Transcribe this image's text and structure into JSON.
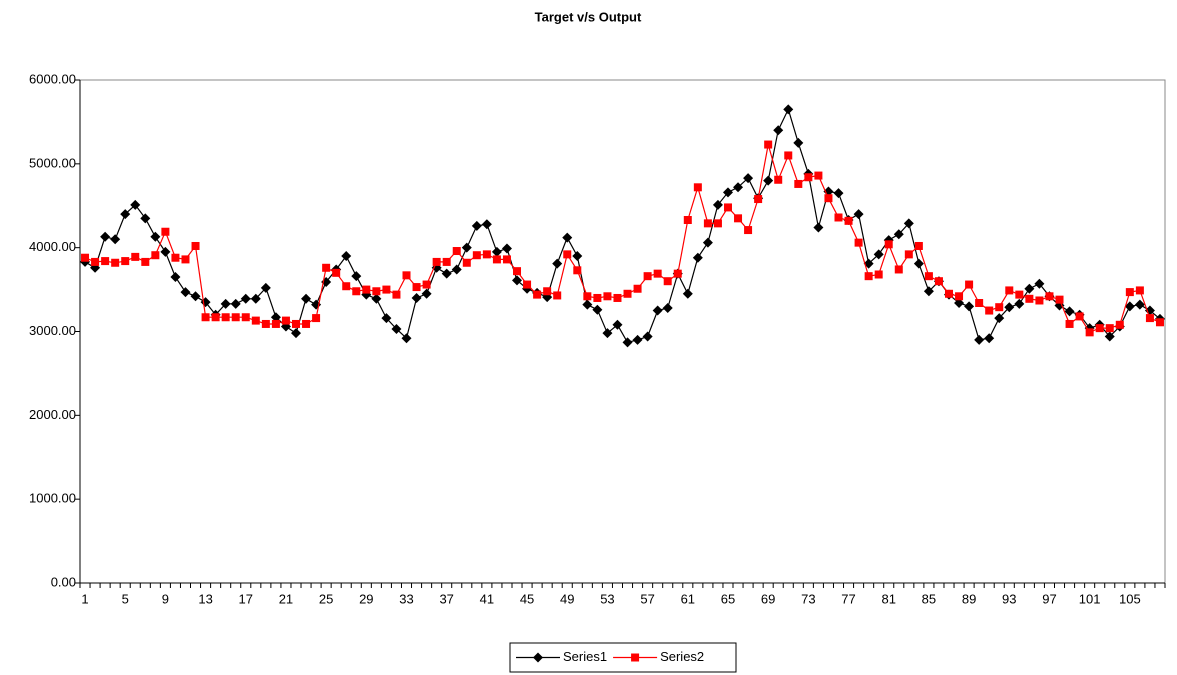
{
  "chart_data": {
    "type": "line",
    "title": "Target v/s  Output",
    "categories": [
      1,
      null,
      null,
      null,
      5,
      null,
      null,
      null,
      9,
      null,
      null,
      null,
      13,
      null,
      null,
      null,
      17,
      null,
      null,
      null,
      21,
      null,
      null,
      null,
      25,
      null,
      null,
      null,
      29,
      null,
      null,
      null,
      33,
      null,
      null,
      null,
      37,
      null,
      null,
      null,
      41,
      null,
      null,
      null,
      45,
      null,
      null,
      null,
      49,
      null,
      null,
      null,
      53,
      null,
      null,
      null,
      57,
      null,
      null,
      null,
      61,
      null,
      null,
      null,
      65,
      null,
      null,
      null,
      69,
      null,
      null,
      null,
      73,
      null,
      null,
      null,
      77,
      null,
      null,
      null,
      81,
      null,
      null,
      null,
      85,
      null,
      null,
      null,
      89,
      null,
      null,
      null,
      93,
      null,
      null,
      null,
      97,
      null,
      null,
      null,
      101,
      null,
      null,
      null,
      105,
      null,
      null,
      null
    ],
    "series": [
      {
        "name": "Series1",
        "color": "#000000",
        "marker": "diamond",
        "values": [
          3830,
          3760,
          4130,
          4100,
          4400,
          4510,
          4350,
          4130,
          3950,
          3650,
          3470,
          3420,
          3350,
          3200,
          3330,
          3330,
          3390,
          3390,
          3520,
          3170,
          3060,
          2980,
          3390,
          3320,
          3590,
          3740,
          3900,
          3660,
          3440,
          3390,
          3160,
          3030,
          2920,
          3400,
          3450,
          3760,
          3690,
          3740,
          4000,
          4260,
          4280,
          3950,
          3990,
          3610,
          3510,
          3460,
          3410,
          3810,
          4120,
          3900,
          3320,
          3260,
          2980,
          3080,
          2870,
          2900,
          2940,
          3250,
          3280,
          3690,
          3450,
          3880,
          4060,
          4510,
          4660,
          4720,
          4830,
          4590,
          4800,
          5400,
          5650,
          5250,
          4880,
          4240,
          4670,
          4650,
          4330,
          4400,
          3810,
          3920,
          4090,
          4160,
          4290,
          3810,
          3480,
          3600,
          3440,
          3340,
          3300,
          2900,
          2920,
          3160,
          3290,
          3330,
          3510,
          3570,
          3420,
          3310,
          3240,
          3200,
          3040,
          3080,
          2940,
          3060,
          3300,
          3320,
          3250,
          3150
        ]
      },
      {
        "name": "Series2",
        "color": "#ff0000",
        "marker": "square",
        "values": [
          3880,
          3830,
          3840,
          3820,
          3840,
          3890,
          3830,
          3910,
          4190,
          3880,
          3860,
          4020,
          3170,
          3170,
          3170,
          3170,
          3170,
          3130,
          3090,
          3090,
          3130,
          3090,
          3090,
          3160,
          3760,
          3700,
          3540,
          3480,
          3500,
          3480,
          3500,
          3440,
          3670,
          3530,
          3560,
          3830,
          3830,
          3960,
          3820,
          3910,
          3920,
          3860,
          3860,
          3720,
          3560,
          3440,
          3480,
          3430,
          3920,
          3730,
          3420,
          3400,
          3420,
          3400,
          3450,
          3510,
          3660,
          3690,
          3600,
          3690,
          4330,
          4720,
          4290,
          4290,
          4480,
          4350,
          4210,
          4580,
          5230,
          4810,
          5100,
          4760,
          4840,
          4860,
          4590,
          4360,
          4320,
          4060,
          3660,
          3680,
          4040,
          3740,
          3920,
          4020,
          3660,
          3600,
          3450,
          3420,
          3560,
          3340,
          3250,
          3290,
          3490,
          3440,
          3390,
          3370,
          3420,
          3380,
          3090,
          3180,
          2990,
          3040,
          3040,
          3080,
          3470,
          3490,
          3160,
          3110
        ]
      }
    ],
    "ylim": [
      0,
      6000
    ],
    "yticks": [
      {
        "value": 0,
        "label": "0.00"
      },
      {
        "value": 1000,
        "label": "1000.00"
      },
      {
        "value": 2000,
        "label": "2000.00"
      },
      {
        "value": 3000,
        "label": "3000.00"
      },
      {
        "value": 4000,
        "label": "4000.00"
      },
      {
        "value": 5000,
        "label": "5000.00"
      },
      {
        "value": 6000,
        "label": "6000.00"
      }
    ],
    "grid": false,
    "legend": "bottom"
  }
}
